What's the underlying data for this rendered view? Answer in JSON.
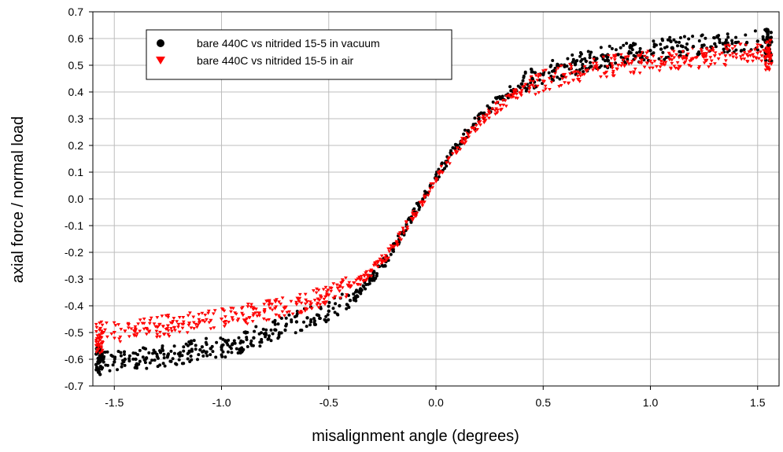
{
  "chart_data": {
    "type": "scatter",
    "title": "",
    "xlabel": "misalignment angle (degrees)",
    "ylabel": "axial force / normal load",
    "xlim": [
      -1.6,
      1.6
    ],
    "ylim": [
      -0.7,
      0.7
    ],
    "x_ticks": [
      "-1.5",
      "-1.0",
      "-0.5",
      "0.0",
      "0.5",
      "1.0",
      "1.5"
    ],
    "x_tick_values": [
      -1.5,
      -1.0,
      -0.5,
      0.0,
      0.5,
      1.0,
      1.5
    ],
    "y_ticks": [
      "0.7",
      "0.6",
      "0.5",
      "0.4",
      "0.3",
      "0.2",
      "0.1",
      "0.0",
      "-0.1",
      "-0.2",
      "-0.3",
      "-0.4",
      "-0.5",
      "-0.6",
      "-0.7"
    ],
    "y_tick_values": [
      0.7,
      0.6,
      0.5,
      0.4,
      0.3,
      0.2,
      0.1,
      0.0,
      -0.1,
      -0.2,
      -0.3,
      -0.4,
      -0.5,
      -0.6,
      -0.7
    ],
    "grid": true,
    "legend_position": "top-left",
    "series": [
      {
        "name": "bare 440C vs nitrided 15-5 in vacuum",
        "marker": "circle",
        "color": "#000000",
        "x": [
          -1.57,
          -1.55,
          -1.5,
          -1.45,
          -1.4,
          -1.35,
          -1.3,
          -1.25,
          -1.2,
          -1.15,
          -1.1,
          -1.05,
          -1.0,
          -0.95,
          -0.9,
          -0.85,
          -0.8,
          -0.75,
          -0.7,
          -0.65,
          -0.6,
          -0.55,
          -0.5,
          -0.45,
          -0.4,
          -0.35,
          -0.3,
          -0.25,
          -0.2,
          -0.15,
          -0.1,
          -0.05,
          0.0,
          0.05,
          0.1,
          0.15,
          0.2,
          0.25,
          0.3,
          0.35,
          0.4,
          0.45,
          0.5,
          0.55,
          0.6,
          0.65,
          0.7,
          0.75,
          0.8,
          0.85,
          0.9,
          0.95,
          1.0,
          1.05,
          1.1,
          1.15,
          1.2,
          1.25,
          1.3,
          1.35,
          1.4,
          1.45,
          1.5,
          1.52,
          1.55
        ],
        "y": [
          -0.6,
          -0.61,
          -0.61,
          -0.6,
          -0.6,
          -0.595,
          -0.59,
          -0.585,
          -0.58,
          -0.57,
          -0.565,
          -0.56,
          -0.555,
          -0.545,
          -0.535,
          -0.52,
          -0.505,
          -0.49,
          -0.475,
          -0.46,
          -0.445,
          -0.435,
          -0.42,
          -0.4,
          -0.38,
          -0.345,
          -0.3,
          -0.25,
          -0.19,
          -0.12,
          -0.05,
          0.015,
          0.08,
          0.14,
          0.2,
          0.255,
          0.3,
          0.34,
          0.375,
          0.405,
          0.43,
          0.45,
          0.465,
          0.48,
          0.495,
          0.505,
          0.515,
          0.525,
          0.53,
          0.54,
          0.545,
          0.55,
          0.555,
          0.56,
          0.565,
          0.57,
          0.57,
          0.575,
          0.58,
          0.585,
          0.585,
          0.585,
          0.59,
          0.57,
          0.575
        ]
      },
      {
        "name": "bare 440C vs nitrided 15-5 in air",
        "marker": "triangle-down",
        "color": "#ff0000",
        "x": [
          -1.57,
          -1.55,
          -1.5,
          -1.45,
          -1.4,
          -1.35,
          -1.3,
          -1.25,
          -1.2,
          -1.15,
          -1.1,
          -1.05,
          -1.0,
          -0.95,
          -0.9,
          -0.85,
          -0.8,
          -0.75,
          -0.7,
          -0.65,
          -0.6,
          -0.55,
          -0.5,
          -0.45,
          -0.4,
          -0.35,
          -0.3,
          -0.25,
          -0.2,
          -0.15,
          -0.1,
          -0.05,
          0.0,
          0.05,
          0.1,
          0.15,
          0.2,
          0.25,
          0.3,
          0.35,
          0.4,
          0.45,
          0.5,
          0.55,
          0.6,
          0.65,
          0.7,
          0.75,
          0.8,
          0.85,
          0.9,
          0.95,
          1.0,
          1.05,
          1.1,
          1.15,
          1.2,
          1.25,
          1.3,
          1.35,
          1.4,
          1.45,
          1.5,
          1.52,
          1.55
        ],
        "y": [
          -0.52,
          -0.5,
          -0.5,
          -0.495,
          -0.49,
          -0.485,
          -0.48,
          -0.475,
          -0.47,
          -0.465,
          -0.46,
          -0.455,
          -0.45,
          -0.445,
          -0.435,
          -0.43,
          -0.42,
          -0.41,
          -0.405,
          -0.395,
          -0.385,
          -0.375,
          -0.36,
          -0.345,
          -0.325,
          -0.3,
          -0.27,
          -0.23,
          -0.18,
          -0.12,
          -0.055,
          0.01,
          0.075,
          0.135,
          0.19,
          0.24,
          0.285,
          0.32,
          0.35,
          0.38,
          0.405,
          0.425,
          0.44,
          0.455,
          0.465,
          0.475,
          0.48,
          0.49,
          0.495,
          0.5,
          0.505,
          0.51,
          0.515,
          0.515,
          0.52,
          0.525,
          0.525,
          0.53,
          0.535,
          0.535,
          0.54,
          0.54,
          0.545,
          0.535,
          0.535
        ]
      }
    ]
  }
}
